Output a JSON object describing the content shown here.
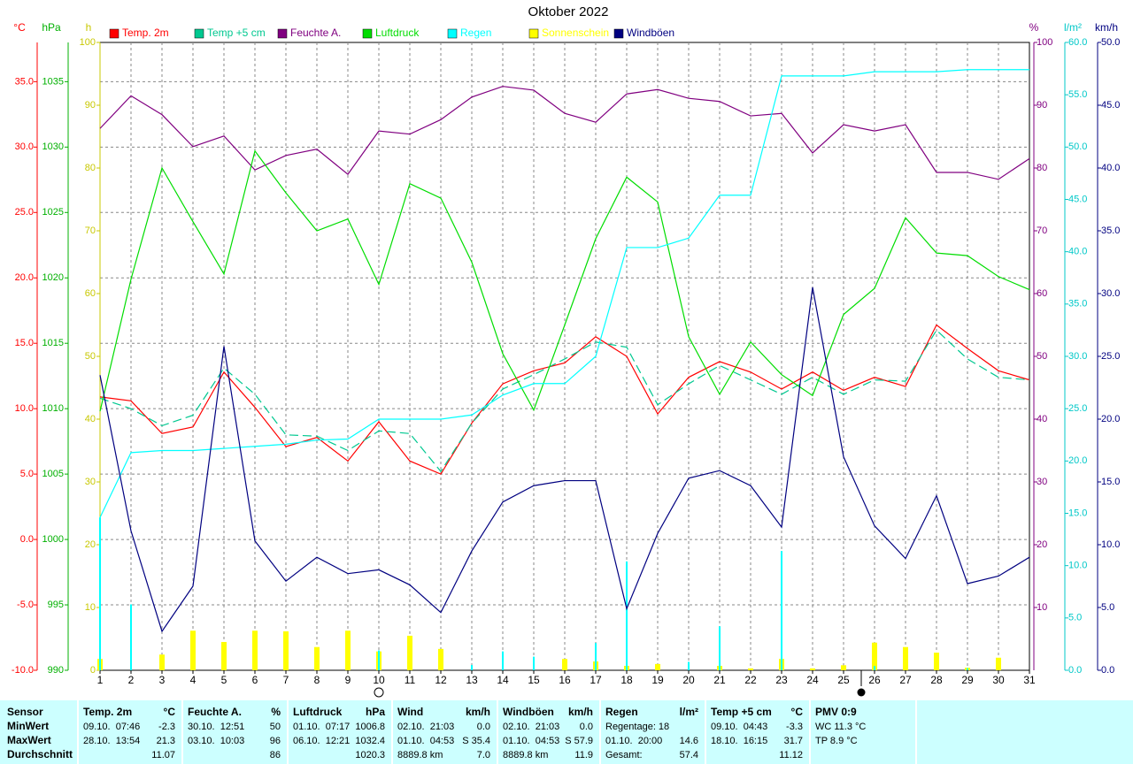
{
  "chart_data": {
    "type": "line",
    "title": "Oktober 2022",
    "x": [
      1,
      2,
      3,
      4,
      5,
      6,
      7,
      8,
      9,
      10,
      11,
      12,
      13,
      14,
      15,
      16,
      17,
      18,
      19,
      20,
      21,
      22,
      23,
      24,
      25,
      26,
      27,
      28,
      29,
      30,
      31
    ],
    "xlim": [
      1,
      31
    ],
    "grid": true,
    "axes": [
      {
        "unit": "°C",
        "color": "#ff0000",
        "lim": [
          -10,
          38
        ],
        "ticks": [
          {
            "value": -10,
            "label": "-10.0"
          },
          {
            "value": -5,
            "label": "-5.0"
          },
          {
            "value": 0,
            "label": "0.0"
          },
          {
            "value": 5,
            "label": "5.0"
          },
          {
            "value": 10,
            "label": "10.0"
          },
          {
            "value": 15,
            "label": "15.0"
          },
          {
            "value": 20,
            "label": "20.0"
          },
          {
            "value": 25,
            "label": "25.0"
          },
          {
            "value": 30,
            "label": "30.0"
          },
          {
            "value": 35,
            "label": "35.0"
          }
        ]
      },
      {
        "unit": "hPa",
        "color": "#00b000",
        "lim": [
          990,
          1038
        ],
        "ticks": [
          990,
          995,
          1000,
          1005,
          1010,
          1015,
          1020,
          1025,
          1030,
          1035
        ]
      },
      {
        "unit": "h",
        "color": "#c8c800",
        "lim": [
          0,
          100
        ],
        "ticks": [
          0,
          10,
          20,
          30,
          40,
          50,
          60,
          70,
          80,
          90,
          100
        ]
      },
      {
        "unit": "%",
        "color": "#800080",
        "lim": [
          0,
          100
        ],
        "ticks": [
          10,
          20,
          30,
          40,
          50,
          60,
          70,
          80,
          90,
          100
        ]
      },
      {
        "unit": "l/m²",
        "color": "#00c8c8",
        "lim": [
          0,
          60
        ],
        "ticks": [
          {
            "value": 0,
            "label": "0.0"
          },
          {
            "value": 5,
            "label": "5.0"
          },
          {
            "value": 10,
            "label": "10.0"
          },
          {
            "value": 15,
            "label": "15.0"
          },
          {
            "value": 20,
            "label": "20.0"
          },
          {
            "value": 25,
            "label": "25.0"
          },
          {
            "value": 30,
            "label": "30.0"
          },
          {
            "value": 35,
            "label": "35.0"
          },
          {
            "value": 40,
            "label": "40.0"
          },
          {
            "value": 45,
            "label": "45.0"
          },
          {
            "value": 50,
            "label": "50.0"
          },
          {
            "value": 55,
            "label": "55.0"
          },
          {
            "value": 60,
            "label": "60.0"
          }
        ]
      },
      {
        "unit": "km/h",
        "color": "#000080",
        "lim": [
          0,
          50
        ],
        "ticks": [
          {
            "value": 0,
            "label": "0.0"
          },
          {
            "value": 5,
            "label": "5.0"
          },
          {
            "value": 10,
            "label": "10.0"
          },
          {
            "value": 15,
            "label": "15.0"
          },
          {
            "value": 20,
            "label": "20.0"
          },
          {
            "value": 25,
            "label": "25.0"
          },
          {
            "value": 30,
            "label": "30.0"
          },
          {
            "value": 35,
            "label": "35.0"
          },
          {
            "value": 40,
            "label": "40.0"
          },
          {
            "value": 45,
            "label": "45.0"
          },
          {
            "value": 50,
            "label": "50.0"
          }
        ]
      }
    ],
    "series": [
      {
        "name": "Temp. 2m",
        "color": "#ff0000",
        "axis": 0,
        "style": "line",
        "values": [
          10.9,
          10.6,
          8.1,
          8.6,
          12.8,
          10.1,
          7.1,
          7.8,
          6.0,
          9.0,
          6.0,
          5.0,
          8.9,
          11.9,
          12.9,
          13.5,
          15.5,
          14.0,
          9.6,
          12.4,
          13.6,
          12.8,
          11.5,
          12.8,
          11.4,
          12.4,
          11.7,
          16.4,
          14.6,
          12.9,
          12.2
        ]
      },
      {
        "name": "Temp +5 cm",
        "color": "#00c890",
        "axis": 0,
        "style": "dashed",
        "values": [
          10.8,
          10.0,
          8.7,
          9.5,
          13.1,
          11.1,
          8.0,
          7.9,
          6.8,
          8.3,
          8.1,
          5.2,
          8.9,
          11.5,
          12.6,
          13.8,
          15.1,
          14.7,
          10.3,
          11.9,
          13.3,
          12.2,
          11.1,
          12.4,
          11.1,
          12.2,
          12.1,
          16.0,
          13.8,
          12.4,
          12.2
        ]
      },
      {
        "name": "Feuchte A.",
        "color": "#800080",
        "axis": 3,
        "style": "line",
        "values": [
          86.3,
          91.5,
          88.5,
          83.4,
          85.1,
          79.7,
          82.0,
          83.0,
          79.0,
          85.9,
          85.4,
          87.7,
          91.3,
          93.0,
          92.4,
          88.7,
          87.3,
          91.8,
          92.5,
          91.1,
          90.6,
          88.3,
          88.7,
          82.4,
          86.9,
          85.9,
          86.9,
          79.3,
          79.3,
          78.2,
          81.5
        ]
      },
      {
        "name": "Luftdruck",
        "color": "#00dd00",
        "axis": 1,
        "style": "line",
        "values": [
          1009.8,
          1019.9,
          1028.4,
          1024.3,
          1020.3,
          1029.7,
          1026.5,
          1023.6,
          1024.5,
          1019.5,
          1027.2,
          1026.1,
          1021.2,
          1014.2,
          1009.9,
          1016.4,
          1023.0,
          1027.7,
          1025.8,
          1015.5,
          1011.1,
          1015.1,
          1012.6,
          1011.0,
          1017.2,
          1019.2,
          1024.6,
          1021.9,
          1021.7,
          1020.1,
          1019.1
        ]
      },
      {
        "name": "Regen",
        "color": "#00ffff",
        "axis": 4,
        "style": "line",
        "values": [
          14.6,
          20.8,
          21.0,
          21.0,
          21.2,
          21.4,
          21.6,
          22.0,
          22.1,
          24.0,
          24.0,
          24.0,
          24.4,
          26.3,
          27.4,
          27.4,
          30.0,
          40.4,
          40.4,
          41.3,
          45.4,
          45.4,
          56.8,
          56.8,
          56.8,
          57.2,
          57.2,
          57.2,
          57.4,
          57.4,
          57.4
        ],
        "bars": [
          14.6,
          6.3,
          0,
          0,
          0,
          0,
          0,
          0,
          0,
          1.9,
          0,
          0,
          0.5,
          1.8,
          1.3,
          0,
          2.6,
          10.4,
          0,
          0.8,
          4.2,
          0,
          11.4,
          0,
          0,
          0.4,
          0,
          0,
          0.2,
          0,
          0
        ]
      },
      {
        "name": "Sonnenschein",
        "color": "#ffff00",
        "axis": 2,
        "style": "bar",
        "values": [
          1.8,
          0,
          2.5,
          6.3,
          4.5,
          6.3,
          6.2,
          3.7,
          6.3,
          3.0,
          5.5,
          3.4,
          0,
          0,
          0,
          1.8,
          1.4,
          0.7,
          1.0,
          0,
          0.7,
          0.3,
          1.8,
          0.3,
          0.8,
          4.4,
          3.7,
          2.8,
          0.4,
          2.0,
          0
        ]
      },
      {
        "name": "Windböen",
        "color": "#000080",
        "axis": 5,
        "style": "line",
        "values": [
          23.5,
          11.1,
          3.1,
          6.7,
          25.8,
          10.3,
          7.1,
          9.0,
          7.7,
          8.0,
          6.8,
          4.6,
          9.5,
          13.4,
          14.7,
          15.1,
          15.1,
          4.9,
          10.9,
          15.3,
          15.9,
          14.7,
          11.4,
          30.5,
          17.0,
          11.5,
          8.9,
          13.9,
          6.9,
          7.5,
          9.0
        ]
      }
    ]
  },
  "table": {
    "row_labels": [
      "Sensor",
      "MinWert",
      "MaxWert",
      "Durchschnitt"
    ],
    "columns": [
      {
        "title": "Temp. 2m",
        "unit": "°C",
        "cells": [
          {
            "left": "09.10.  07:46",
            "right": "-2.3"
          },
          {
            "left": "28.10.  13:54",
            "right": "21.3"
          },
          {
            "right": "11.07"
          }
        ]
      },
      {
        "title": "Feuchte A.",
        "unit": "%",
        "cells": [
          {
            "left": "30.10.  12:51",
            "right": "50"
          },
          {
            "left": "03.10.  10:03",
            "right": "96"
          },
          {
            "right": "86"
          }
        ]
      },
      {
        "title": "Luftdruck",
        "unit": "hPa",
        "cells": [
          {
            "left": "01.10.  07:17",
            "right": "1006.8"
          },
          {
            "left": "06.10.  12:21",
            "right": "1032.4"
          },
          {
            "right": "1020.3"
          }
        ]
      },
      {
        "title": "Wind",
        "unit": "km/h",
        "cells": [
          {
            "left": "02.10.  21:03",
            "right": "0.0"
          },
          {
            "left": "01.10.  04:53",
            "right": "S 35.4"
          },
          {
            "left": "8889.8 km",
            "right": "7.0"
          }
        ]
      },
      {
        "title": "Windböen",
        "unit": "km/h",
        "cells": [
          {
            "left": "02.10.  21:03",
            "right": "0.0"
          },
          {
            "left": "01.10.  04:53",
            "right": "S 57.9"
          },
          {
            "left": "8889.8 km",
            "right": "11.9"
          }
        ]
      },
      {
        "title": "Regen",
        "unit": "l/m²",
        "cells": [
          {
            "left": "Regentage: 18"
          },
          {
            "left": "01.10.  20:00",
            "right": "14.6"
          },
          {
            "left": "Gesamt:",
            "right": "57.4"
          }
        ]
      },
      {
        "title": "Temp +5 cm",
        "unit": "°C",
        "cells": [
          {
            "left": "09.10.  04:43",
            "right": "-3.3"
          },
          {
            "left": "18.10.  16:15",
            "right": "31.7"
          },
          {
            "right": "11.12"
          }
        ]
      },
      {
        "title": "PMV 0:9",
        "cells": [
          {
            "left": "WC 11.3 °C"
          },
          {
            "left": "TP 8.9 °C"
          }
        ]
      }
    ]
  }
}
